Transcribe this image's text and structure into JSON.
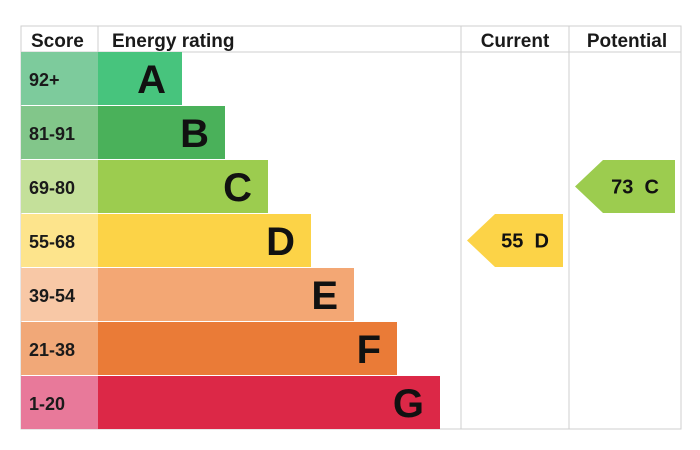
{
  "chart_data": {
    "type": "table",
    "headers": {
      "score": "Score",
      "rating": "Energy rating",
      "current": "Current",
      "potential": "Potential"
    },
    "bands": [
      {
        "letter": "A",
        "range": "92+",
        "color": "#47c47d",
        "score_color": "#7dcb9c"
      },
      {
        "letter": "B",
        "range": "81-91",
        "color": "#4ab15a",
        "score_color": "#82c68a"
      },
      {
        "letter": "C",
        "range": "69-80",
        "color": "#9ccc4f",
        "score_color": "#c4e09a"
      },
      {
        "letter": "D",
        "range": "55-68",
        "color": "#fcd347",
        "score_color": "#fde48c"
      },
      {
        "letter": "E",
        "range": "39-54",
        "color": "#f3a774",
        "score_color": "#f8c8a6"
      },
      {
        "letter": "F",
        "range": "21-38",
        "color": "#ea7b37",
        "score_color": "#f1a878"
      },
      {
        "letter": "G",
        "range": "1-20",
        "color": "#dc2847",
        "score_color": "#e8799a"
      }
    ],
    "current": {
      "score": 55,
      "band": "D",
      "label": "55  D",
      "color": "#fcd347"
    },
    "potential": {
      "score": 73,
      "band": "C",
      "label": "73  C",
      "color": "#9ccc4f"
    }
  }
}
